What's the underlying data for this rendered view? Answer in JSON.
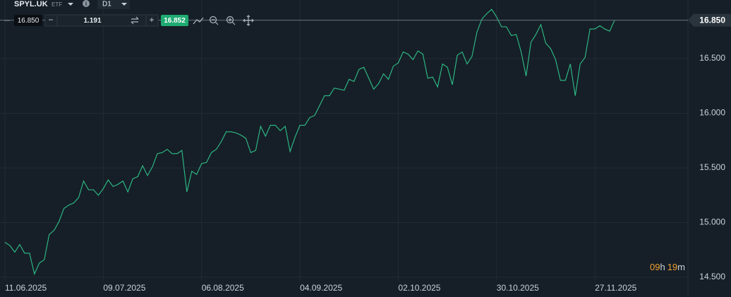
{
  "toolbar": {
    "symbol": "SPYL.UK",
    "symbol_type": "ETF",
    "interval": "D1",
    "sell_price": "16.850",
    "volume": "1.191",
    "buy_price": "16.852"
  },
  "countdown": {
    "hours": "09",
    "hours_unit": "h",
    "minutes": "19",
    "minutes_unit": "m"
  },
  "chart_data": {
    "type": "line",
    "categories": [
      "11.06.2025",
      null,
      null,
      null,
      null,
      null,
      null,
      null,
      null,
      null,
      null,
      null,
      null,
      null,
      null,
      null,
      null,
      null,
      null,
      null,
      "09.07.2025",
      null,
      null,
      null,
      null,
      null,
      null,
      null,
      null,
      null,
      null,
      null,
      null,
      null,
      null,
      null,
      null,
      null,
      null,
      null,
      "06.08.2025",
      null,
      null,
      null,
      null,
      null,
      null,
      null,
      null,
      null,
      null,
      null,
      null,
      null,
      null,
      null,
      null,
      null,
      null,
      null,
      "04.09.2025",
      null,
      null,
      null,
      null,
      null,
      null,
      null,
      null,
      null,
      null,
      null,
      null,
      null,
      null,
      null,
      null,
      null,
      null,
      null,
      "02.10.2025",
      null,
      null,
      null,
      null,
      null,
      null,
      null,
      null,
      null,
      null,
      null,
      null,
      null,
      null,
      null,
      null,
      null,
      null,
      null,
      "30.10.2025",
      null,
      null,
      null,
      null,
      null,
      null,
      null,
      null,
      null,
      null,
      null,
      null,
      null,
      null,
      null,
      null,
      null,
      null,
      null,
      "27.11.2025",
      null,
      null,
      null,
      null
    ],
    "series": [
      {
        "color": "#2fc08a",
        "values": [
          14.82,
          14.79,
          14.73,
          14.8,
          14.72,
          14.72,
          14.53,
          14.63,
          14.66,
          14.89,
          14.93,
          15.01,
          15.13,
          15.16,
          15.18,
          15.23,
          15.38,
          15.3,
          15.3,
          15.25,
          15.31,
          15.39,
          15.33,
          15.35,
          15.38,
          15.28,
          15.4,
          15.42,
          15.52,
          15.43,
          15.51,
          15.63,
          15.64,
          15.67,
          15.63,
          15.63,
          15.66,
          15.28,
          15.47,
          15.44,
          15.54,
          15.55,
          15.64,
          15.67,
          15.74,
          15.83,
          15.83,
          15.82,
          15.8,
          15.77,
          15.64,
          15.66,
          15.88,
          15.79,
          15.89,
          15.89,
          15.84,
          15.88,
          15.65,
          15.78,
          15.89,
          15.89,
          15.96,
          15.98,
          16.07,
          16.16,
          16.16,
          16.23,
          16.22,
          16.21,
          16.31,
          16.29,
          16.4,
          16.42,
          16.32,
          16.22,
          16.27,
          16.36,
          16.31,
          16.43,
          16.46,
          16.56,
          16.54,
          16.49,
          16.57,
          16.54,
          16.32,
          16.33,
          16.24,
          16.45,
          16.42,
          16.26,
          16.53,
          16.56,
          16.45,
          16.52,
          16.74,
          16.86,
          16.91,
          16.95,
          16.88,
          16.79,
          16.79,
          16.71,
          16.72,
          16.56,
          16.34,
          16.65,
          16.72,
          16.81,
          16.64,
          16.59,
          16.49,
          16.3,
          16.3,
          16.45,
          16.16,
          16.45,
          16.51,
          16.77,
          16.77,
          16.8,
          16.77,
          16.75,
          16.85
        ]
      }
    ],
    "ylim": [
      14.468,
      17.035
    ],
    "yticks": [
      {
        "value": 14.5,
        "label": "14.500"
      },
      {
        "value": 15,
        "label": "15.000"
      },
      {
        "value": 15.5,
        "label": "15.500"
      },
      {
        "value": 16,
        "label": "16.000"
      },
      {
        "value": 16.5,
        "label": "16.500"
      }
    ],
    "last_price": {
      "value": 16.85,
      "label": "16.850"
    },
    "grid": true
  }
}
